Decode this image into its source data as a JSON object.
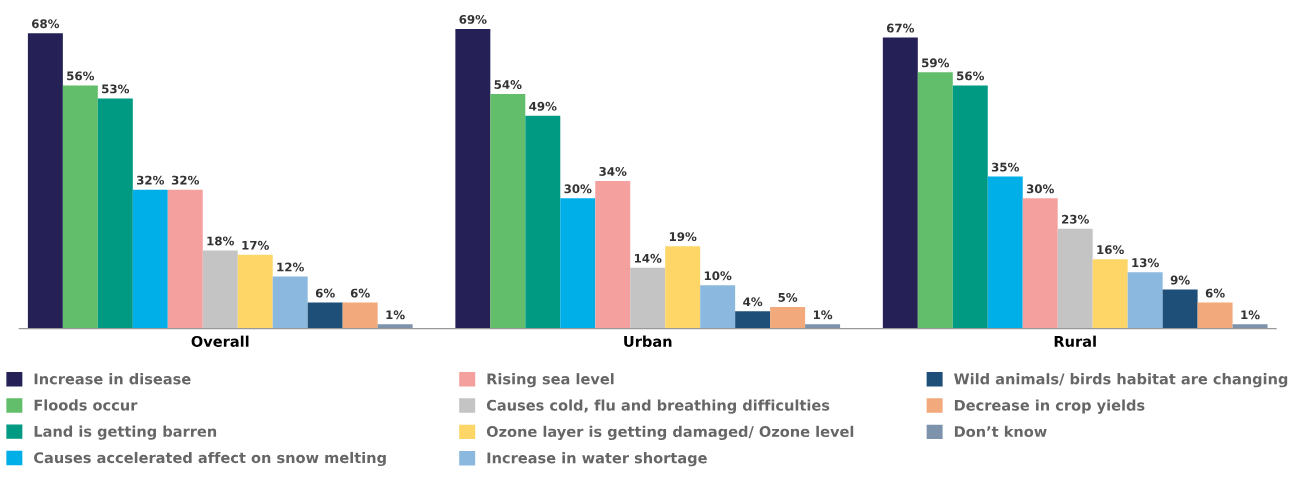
{
  "chart_data": {
    "type": "bar",
    "categories": [
      "Overall",
      "Urban",
      "Rural"
    ],
    "series": [
      {
        "name": "Increase in disease",
        "color": "#252157",
        "values": [
          68,
          69,
          67
        ],
        "value_labels": [
          "68%",
          "69%",
          "67%"
        ]
      },
      {
        "name": "Floods occur",
        "color": "#62be6b",
        "values": [
          56,
          54,
          59
        ],
        "value_labels": [
          "56%",
          "54%",
          "59%"
        ]
      },
      {
        "name": "Land is getting barren",
        "color": "#009a82",
        "values": [
          53,
          49,
          56
        ],
        "value_labels": [
          "53%",
          "49%",
          "56%"
        ]
      },
      {
        "name": "Causes accelerated affect on snow melting",
        "color": "#00aee8",
        "values": [
          32,
          30,
          35
        ],
        "value_labels": [
          "32%",
          "30%",
          "35%"
        ]
      },
      {
        "name": "Rising sea level",
        "color": "#f4a09e",
        "values": [
          32,
          34,
          30
        ],
        "value_labels": [
          "32%",
          "34%",
          "30%"
        ]
      },
      {
        "name": "Causes cold, flu and breathing difficulties",
        "color": "#c4c4c4",
        "values": [
          18,
          14,
          23
        ],
        "value_labels": [
          "18%",
          "14%",
          "23%"
        ]
      },
      {
        "name": "Ozone layer is getting damaged/ Ozone level",
        "color": "#fdd667",
        "values": [
          17,
          19,
          16
        ],
        "value_labels": [
          "17%",
          "19%",
          "16%"
        ]
      },
      {
        "name": "Increase in water shortage",
        "color": "#8bb8df",
        "values": [
          12,
          10,
          13
        ],
        "value_labels": [
          "12%",
          "10%",
          "13%"
        ]
      },
      {
        "name": "Wild animals/ birds habitat are changing",
        "color": "#1e4f78",
        "values": [
          6,
          4,
          9
        ],
        "value_labels": [
          "6%",
          "4%",
          "9%"
        ]
      },
      {
        "name": "Decrease in crop yields",
        "color": "#f2a97c",
        "values": [
          6,
          5,
          6
        ],
        "value_labels": [
          "6%",
          "5%",
          "6%"
        ]
      },
      {
        "name": "Don’t know",
        "color": "#7d92ab",
        "values": [
          1,
          1,
          1
        ],
        "value_labels": [
          "1%",
          "1%",
          "1%"
        ]
      }
    ],
    "legend": "bottom"
  }
}
